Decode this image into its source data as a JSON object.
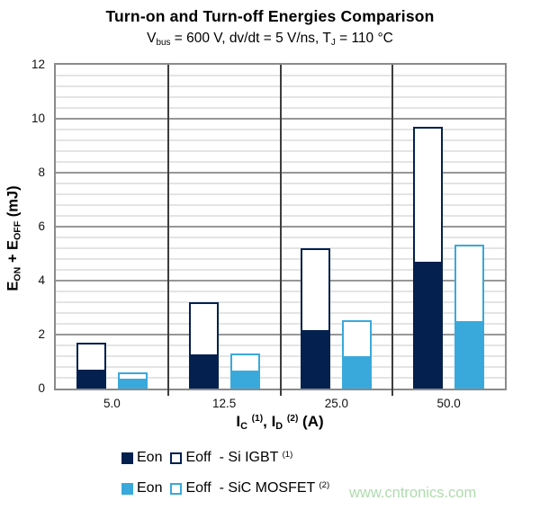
{
  "title": "Turn-on and Turn-off Energies Comparison",
  "watermark": {
    "text": "www.cntronics.com",
    "color": "#aedbae"
  },
  "legend": {
    "eon_label": "Eon",
    "eoff_label": "Eoff",
    "position": "bottom-left"
  },
  "colors": {
    "si_igbt_navy": "#04204e",
    "sic_mosfet_blue": "#39a9dc",
    "major_gridline": "#979797",
    "minor_gridline": "#e4e4e4",
    "plot_border": "#8a8a8a",
    "category_separator": "#3d3d3d",
    "watermark_green": "#aedbae"
  },
  "chart_data": {
    "type": "bar",
    "stacked": true,
    "title": "Turn-on and Turn-off Energies Comparison",
    "subtitle": "Vbus = 600 V, dv/dt = 5 V/ns, TJ = 110 °C",
    "categories": [
      "5.0",
      "12.5",
      "25.0",
      "50.0"
    ],
    "xlabel": "IC (1), ID (2) (A)",
    "ylabel": "EON + EOFF (mJ)",
    "ylim": [
      0,
      12
    ],
    "y_major_unit": 2,
    "y_minor_unit": 0.4,
    "y_ticks": [
      "0",
      "2",
      "4",
      "6",
      "8",
      "10",
      "12"
    ],
    "grid": {
      "horizontal_major": true,
      "horizontal_minor": true,
      "vertical_category_separators": true
    },
    "legend_position": "bottom",
    "series": [
      {
        "name": "Si IGBT",
        "footnote": "(1)",
        "color": "#04204e",
        "segments": [
          {
            "name": "Eon",
            "style": "solid",
            "values": [
              0.65,
              1.2,
              2.1,
              4.65
            ]
          },
          {
            "name": "Eoff",
            "style": "outline",
            "values": [
              1.05,
              2.0,
              3.1,
              5.05
            ]
          }
        ],
        "totals": [
          1.7,
          3.2,
          5.2,
          9.7
        ]
      },
      {
        "name": "SiC MOSFET",
        "footnote": "(2)",
        "color": "#39a9dc",
        "segments": [
          {
            "name": "Eon",
            "style": "solid",
            "values": [
              0.3,
              0.6,
              1.15,
              2.45
            ]
          },
          {
            "name": "Eoff",
            "style": "outline",
            "values": [
              0.3,
              0.7,
              1.4,
              2.9
            ]
          }
        ],
        "totals": [
          0.6,
          1.3,
          2.55,
          5.35
        ]
      }
    ]
  },
  "rich": {
    "subtitle": [
      {
        "text": "V"
      },
      {
        "text": "bus",
        "style": "sub"
      },
      {
        "text": " = 600 V, dv/dt = 5 V/ns, T"
      },
      {
        "text": "J",
        "style": "sub"
      },
      {
        "text": " = 110 °C"
      }
    ],
    "ylabel": [
      {
        "text": "E"
      },
      {
        "text": "ON",
        "style": "sub"
      },
      {
        "text": " + E"
      },
      {
        "text": "OFF",
        "style": "sub"
      },
      {
        "text": " (mJ)"
      }
    ],
    "xlabel": [
      {
        "text": "I"
      },
      {
        "text": "C",
        "style": "sub"
      },
      {
        "text": " "
      },
      {
        "text": "(1)",
        "style": "sup"
      },
      {
        "text": ", I"
      },
      {
        "text": "D",
        "style": "sub"
      },
      {
        "text": " "
      },
      {
        "text": "(2)",
        "style": "sup"
      },
      {
        "text": " (A)"
      }
    ],
    "series_labels": [
      [
        {
          "text": "- Si IGBT "
        },
        {
          "text": "(1)",
          "style": "sup"
        }
      ],
      [
        {
          "text": "- SiC MOSFET "
        },
        {
          "text": "(2)",
          "style": "sup"
        }
      ]
    ]
  }
}
